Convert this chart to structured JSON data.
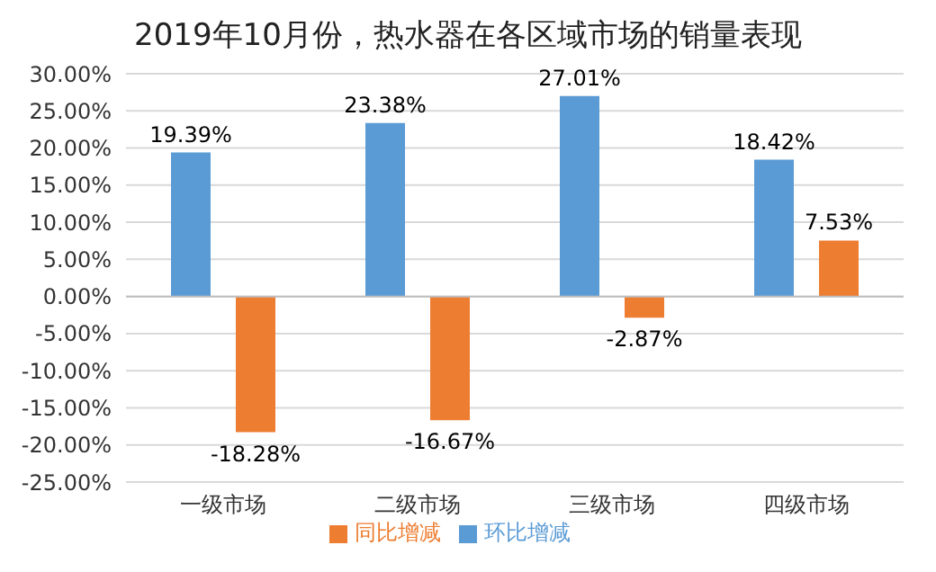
{
  "chart_data": {
    "type": "bar",
    "title": "2019年10月份，热水器在各区域市场的销量表现",
    "categories": [
      "一级市场",
      "二级市场",
      "三级市场",
      "四级市场"
    ],
    "series": [
      {
        "name": "环比增减",
        "color": "#5b9bd5",
        "values": [
          19.39,
          23.38,
          27.01,
          18.42
        ],
        "value_labels": [
          "19.39%",
          "23.38%",
          "27.01%",
          "18.42%"
        ]
      },
      {
        "name": "同比增减",
        "color": "#ed7d31",
        "values": [
          -18.28,
          -16.67,
          -2.87,
          7.53
        ],
        "value_labels": [
          "-18.28%",
          "-16.67%",
          "-2.87%",
          "7.53%"
        ]
      }
    ],
    "ylim": [
      -25,
      30
    ],
    "yticks": [
      {
        "value": -25,
        "label": "-25.00%"
      },
      {
        "value": -20,
        "label": "-20.00%"
      },
      {
        "value": -15,
        "label": "-15.00%"
      },
      {
        "value": -10,
        "label": "-10.00%"
      },
      {
        "value": -5,
        "label": "-5.00%"
      },
      {
        "value": 0,
        "label": "0.00%"
      },
      {
        "value": 5,
        "label": "5.00%"
      },
      {
        "value": 10,
        "label": "10.00%"
      },
      {
        "value": 15,
        "label": "15.00%"
      },
      {
        "value": 20,
        "label": "20.00%"
      },
      {
        "value": 25,
        "label": "25.00%"
      },
      {
        "value": 30,
        "label": "30.00%"
      }
    ],
    "grid": "y",
    "legend": "bottom"
  }
}
